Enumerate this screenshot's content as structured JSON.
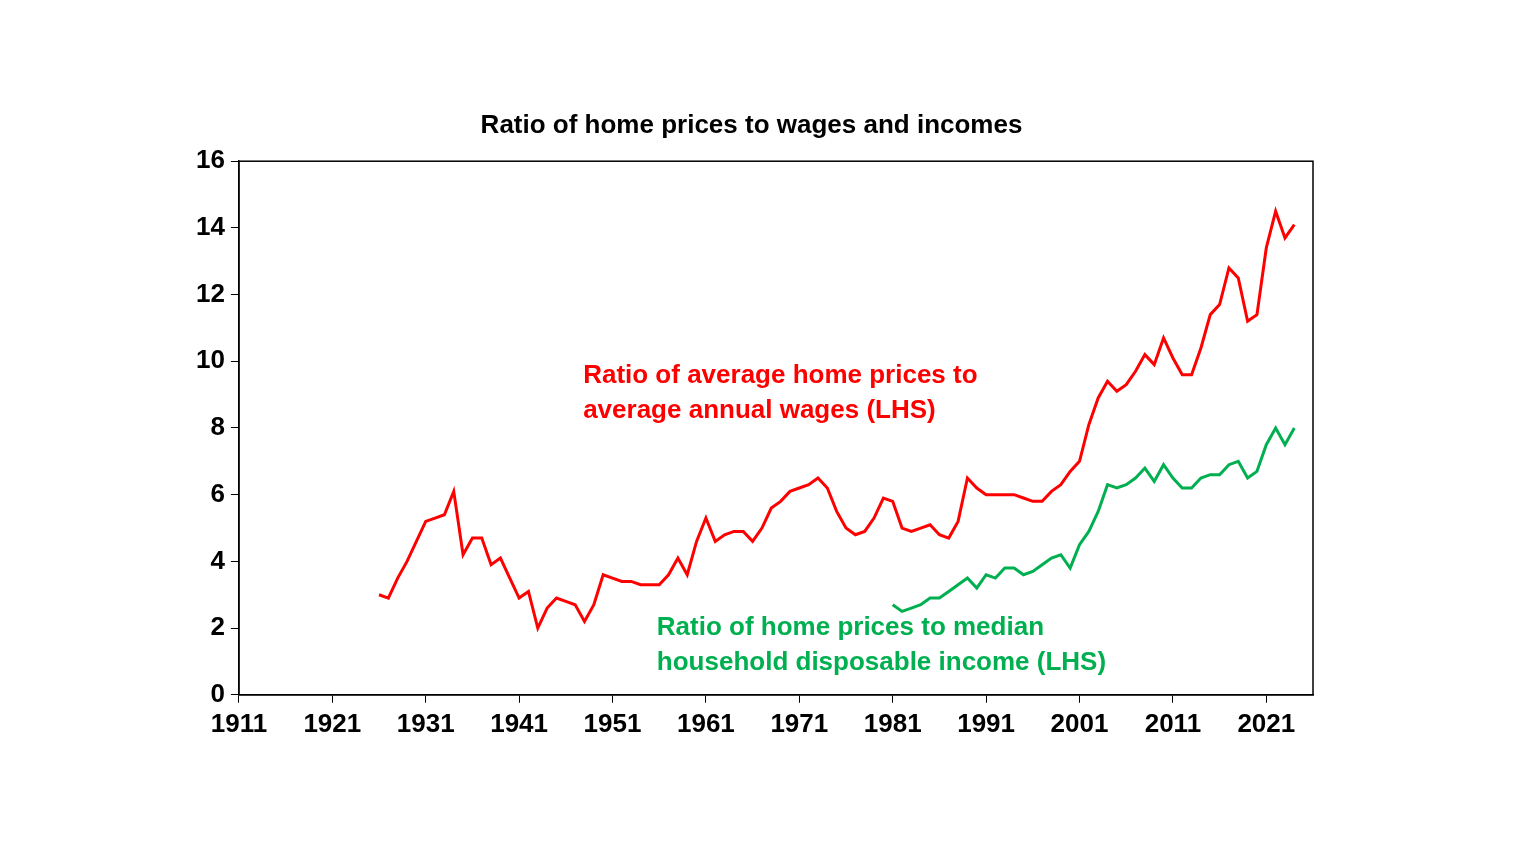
{
  "chart_data": {
    "type": "line",
    "title": "Ratio of home prices to wages and incomes",
    "x": [
      1926,
      1927,
      1928,
      1929,
      1930,
      1931,
      1932,
      1933,
      1934,
      1935,
      1936,
      1937,
      1938,
      1939,
      1940,
      1941,
      1942,
      1943,
      1944,
      1945,
      1946,
      1947,
      1948,
      1949,
      1950,
      1951,
      1952,
      1953,
      1954,
      1955,
      1956,
      1957,
      1958,
      1959,
      1960,
      1961,
      1962,
      1963,
      1964,
      1965,
      1966,
      1967,
      1968,
      1969,
      1970,
      1971,
      1972,
      1973,
      1974,
      1975,
      1976,
      1977,
      1978,
      1979,
      1980,
      1981,
      1982,
      1983,
      1984,
      1985,
      1986,
      1987,
      1988,
      1989,
      1990,
      1991,
      1992,
      1993,
      1994,
      1995,
      1996,
      1997,
      1998,
      1999,
      2000,
      2001,
      2002,
      2003,
      2004,
      2005,
      2006,
      2007,
      2008,
      2009,
      2010,
      2011,
      2012,
      2013,
      2014,
      2015,
      2016,
      2017,
      2018,
      2019,
      2020,
      2021,
      2022,
      2023,
      2024
    ],
    "series": [
      {
        "name": "Ratio of average home prices to\naverage annual wages (LHS)",
        "color": "#ff0000",
        "values": [
          3.0,
          2.9,
          3.5,
          4.0,
          4.6,
          5.2,
          5.3,
          5.4,
          6.1,
          4.2,
          4.7,
          4.7,
          3.9,
          4.1,
          3.5,
          2.9,
          3.1,
          2.0,
          2.6,
          2.9,
          2.8,
          2.7,
          2.2,
          2.7,
          3.6,
          3.5,
          3.4,
          3.4,
          3.3,
          3.3,
          3.3,
          3.6,
          4.1,
          3.6,
          4.6,
          5.3,
          4.6,
          4.8,
          4.9,
          4.9,
          4.6,
          5.0,
          5.6,
          5.8,
          6.1,
          6.2,
          6.3,
          6.5,
          6.2,
          5.5,
          5.0,
          4.8,
          4.9,
          5.3,
          5.9,
          5.8,
          5.0,
          4.9,
          5.0,
          5.1,
          4.8,
          4.7,
          5.2,
          6.5,
          6.2,
          6.0,
          6.0,
          6.0,
          6.0,
          5.9,
          5.8,
          5.8,
          6.1,
          6.3,
          6.7,
          7.0,
          8.1,
          8.9,
          9.4,
          9.1,
          9.3,
          9.7,
          10.2,
          9.9,
          10.7,
          10.1,
          9.6,
          9.6,
          10.4,
          11.4,
          11.7,
          12.8,
          12.5,
          11.2,
          11.4,
          13.4,
          14.5,
          13.7,
          14.1
        ]
      },
      {
        "name": "Ratio of home prices to median\nhousehold disposable income (LHS)",
        "color": "#00b050",
        "values": [
          null,
          null,
          null,
          null,
          null,
          null,
          null,
          null,
          null,
          null,
          null,
          null,
          null,
          null,
          null,
          null,
          null,
          null,
          null,
          null,
          null,
          null,
          null,
          null,
          null,
          null,
          null,
          null,
          null,
          null,
          null,
          null,
          null,
          null,
          null,
          null,
          null,
          null,
          null,
          null,
          null,
          null,
          null,
          null,
          null,
          null,
          null,
          null,
          null,
          null,
          null,
          null,
          null,
          null,
          null,
          2.7,
          2.5,
          2.6,
          2.7,
          2.9,
          2.9,
          3.1,
          3.3,
          3.5,
          3.2,
          3.6,
          3.5,
          3.8,
          3.8,
          3.6,
          3.7,
          3.9,
          4.1,
          4.2,
          3.8,
          4.5,
          4.9,
          5.5,
          6.3,
          6.2,
          6.3,
          6.5,
          6.8,
          6.4,
          6.9,
          6.5,
          6.2,
          6.2,
          6.5,
          6.6,
          6.6,
          6.9,
          7.0,
          6.5,
          6.7,
          7.5,
          8.0,
          7.5,
          8.0
        ]
      }
    ],
    "xlim": [
      1911,
      2026
    ],
    "xticks": [
      1911,
      1921,
      1931,
      1941,
      1951,
      1961,
      1971,
      1981,
      1991,
      2001,
      2011,
      2021
    ],
    "ylim": [
      0,
      16
    ],
    "yticks": [
      0,
      2,
      4,
      6,
      8,
      10,
      12,
      14,
      16
    ],
    "grid": false
  }
}
